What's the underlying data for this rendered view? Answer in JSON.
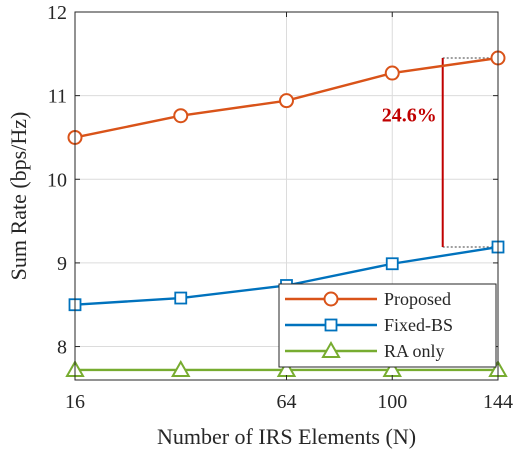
{
  "chart_data": {
    "type": "line",
    "title": "",
    "xlabel": "Number of IRS Elements (N)",
    "ylabel": "Sum Rate (bps/Hz)",
    "x": [
      16,
      36,
      64,
      100,
      144
    ],
    "x_scale": "sqrt",
    "xticks": [
      16,
      64,
      100,
      144
    ],
    "xtick_labels": [
      "16",
      "64",
      "100",
      "144"
    ],
    "xlim": [
      16,
      144
    ],
    "ylim": [
      7.6,
      12
    ],
    "yticks": [
      8,
      9,
      10,
      11,
      12
    ],
    "ytick_labels": [
      "8",
      "9",
      "10",
      "11",
      "12"
    ],
    "grid": true,
    "legend_position": "bottom-right",
    "series": [
      {
        "name": "Proposed",
        "values": [
          10.5,
          10.76,
          10.94,
          11.27,
          11.45
        ],
        "color": "#d95319",
        "marker": "circle"
      },
      {
        "name": "Fixed-BS",
        "values": [
          8.5,
          8.58,
          8.73,
          8.99,
          9.19
        ],
        "color": "#0072bd",
        "marker": "square"
      },
      {
        "name": "RA only",
        "values": [
          7.72,
          7.72,
          7.72,
          7.72,
          7.72
        ],
        "color": "#77ac30",
        "marker": "triangle"
      }
    ],
    "annotation": {
      "text": "24.6%",
      "x": 120,
      "y_low": 9.19,
      "y_high": 11.45,
      "color": "#c00000"
    }
  }
}
